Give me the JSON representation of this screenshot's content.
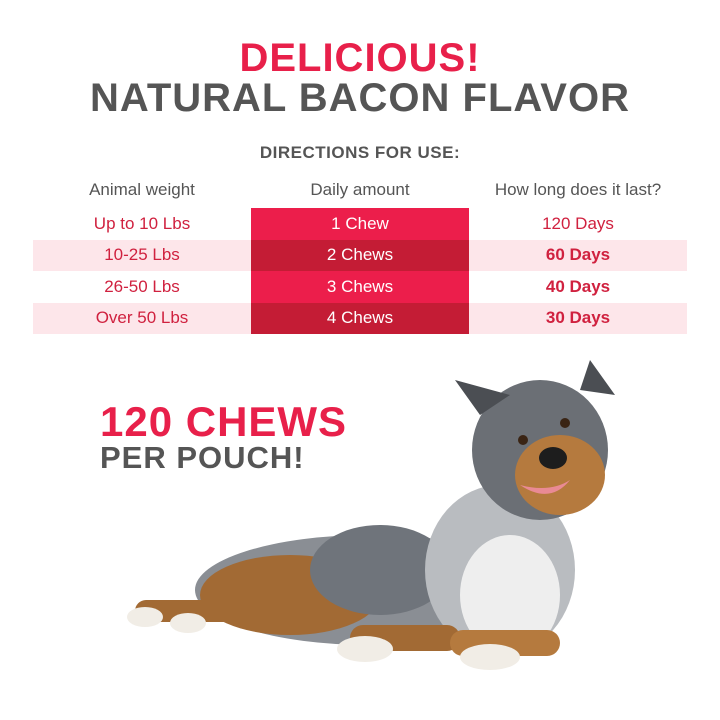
{
  "headline": {
    "line1": "DELICIOUS!",
    "line2": "NATURAL BACON FLAVOR"
  },
  "directions": {
    "title": "DIRECTIONS FOR USE:",
    "columns": [
      "Animal weight",
      "Daily amount",
      "How long does it last?"
    ],
    "rows": [
      [
        "Up to 10 Lbs",
        "1 Chew",
        "120 Days"
      ],
      [
        "10-25 Lbs",
        "2 Chews",
        "60 Days"
      ],
      [
        "26-50 Lbs",
        "3 Chews",
        "40 Days"
      ],
      [
        "Over 50 Lbs",
        "4 Chews",
        "30 Days"
      ]
    ]
  },
  "promo": {
    "line1": "120 CHEWS",
    "line2": "PER POUCH!"
  },
  "image": {
    "subject": "dog-photo"
  },
  "colors": {
    "accent": "#e8204a",
    "text_gray": "#555555",
    "stripe": "#fde6ea",
    "amount_dark": "#c41c35"
  }
}
